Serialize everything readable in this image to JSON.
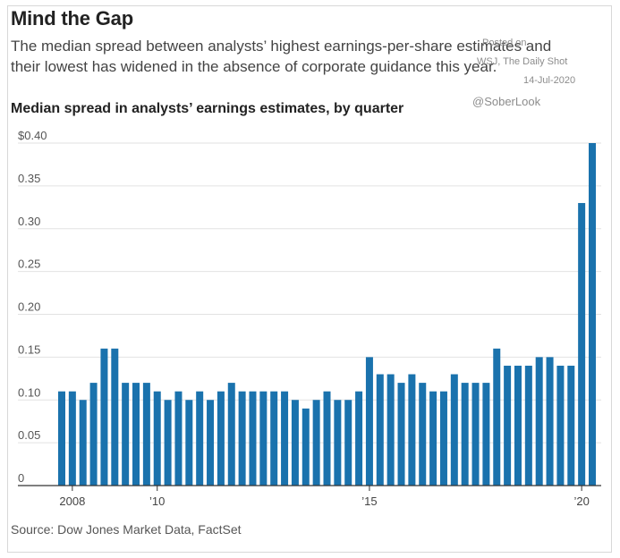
{
  "title": "Mind the Gap",
  "subtitle": "The median spread between analysts’ highest earnings-per-share estimates and their lowest has widened in the absence of corporate guidance this year.",
  "chart_title": "Median spread in analysts’ earnings estimates, by quarter",
  "source": "Source: Dow Jones Market Data, FactSet",
  "watermark": {
    "line1": "Posted on",
    "line2": "WSJ, The Daily Shot",
    "date": "14-Jul-2020",
    "handle": "@SoberLook"
  },
  "colors": {
    "bar": "#1a72ad",
    "grid": "#e2e2e2",
    "axis": "#333333"
  },
  "chart_data": {
    "type": "bar",
    "title": "Median spread in analysts’ earnings estimates, by quarter",
    "xlabel": "",
    "ylabel": "",
    "ylim": [
      0,
      0.4
    ],
    "grid": true,
    "y_ticks": [
      {
        "value": 0.4,
        "label": "$0.40"
      },
      {
        "value": 0.35,
        "label": "0.35"
      },
      {
        "value": 0.3,
        "label": "0.30"
      },
      {
        "value": 0.25,
        "label": "0.25"
      },
      {
        "value": 0.2,
        "label": "0.20"
      },
      {
        "value": 0.15,
        "label": "0.15"
      },
      {
        "value": 0.1,
        "label": "0.10"
      },
      {
        "value": 0.05,
        "label": "0.05"
      },
      {
        "value": 0,
        "label": "0"
      }
    ],
    "x_ticks": [
      {
        "index": 1,
        "label": "2008"
      },
      {
        "index": 9,
        "label": "’10"
      },
      {
        "index": 29,
        "label": "’15"
      },
      {
        "index": 49,
        "label": "’20"
      }
    ],
    "values": [
      0.11,
      0.11,
      0.1,
      0.12,
      0.16,
      0.16,
      0.12,
      0.12,
      0.12,
      0.11,
      0.1,
      0.11,
      0.1,
      0.11,
      0.1,
      0.11,
      0.12,
      0.11,
      0.11,
      0.11,
      0.11,
      0.11,
      0.1,
      0.09,
      0.1,
      0.11,
      0.1,
      0.1,
      0.11,
      0.15,
      0.13,
      0.13,
      0.12,
      0.13,
      0.12,
      0.11,
      0.11,
      0.13,
      0.12,
      0.12,
      0.12,
      0.16,
      0.14,
      0.14,
      0.14,
      0.15,
      0.15,
      0.14,
      0.14,
      0.33,
      0.4
    ]
  }
}
